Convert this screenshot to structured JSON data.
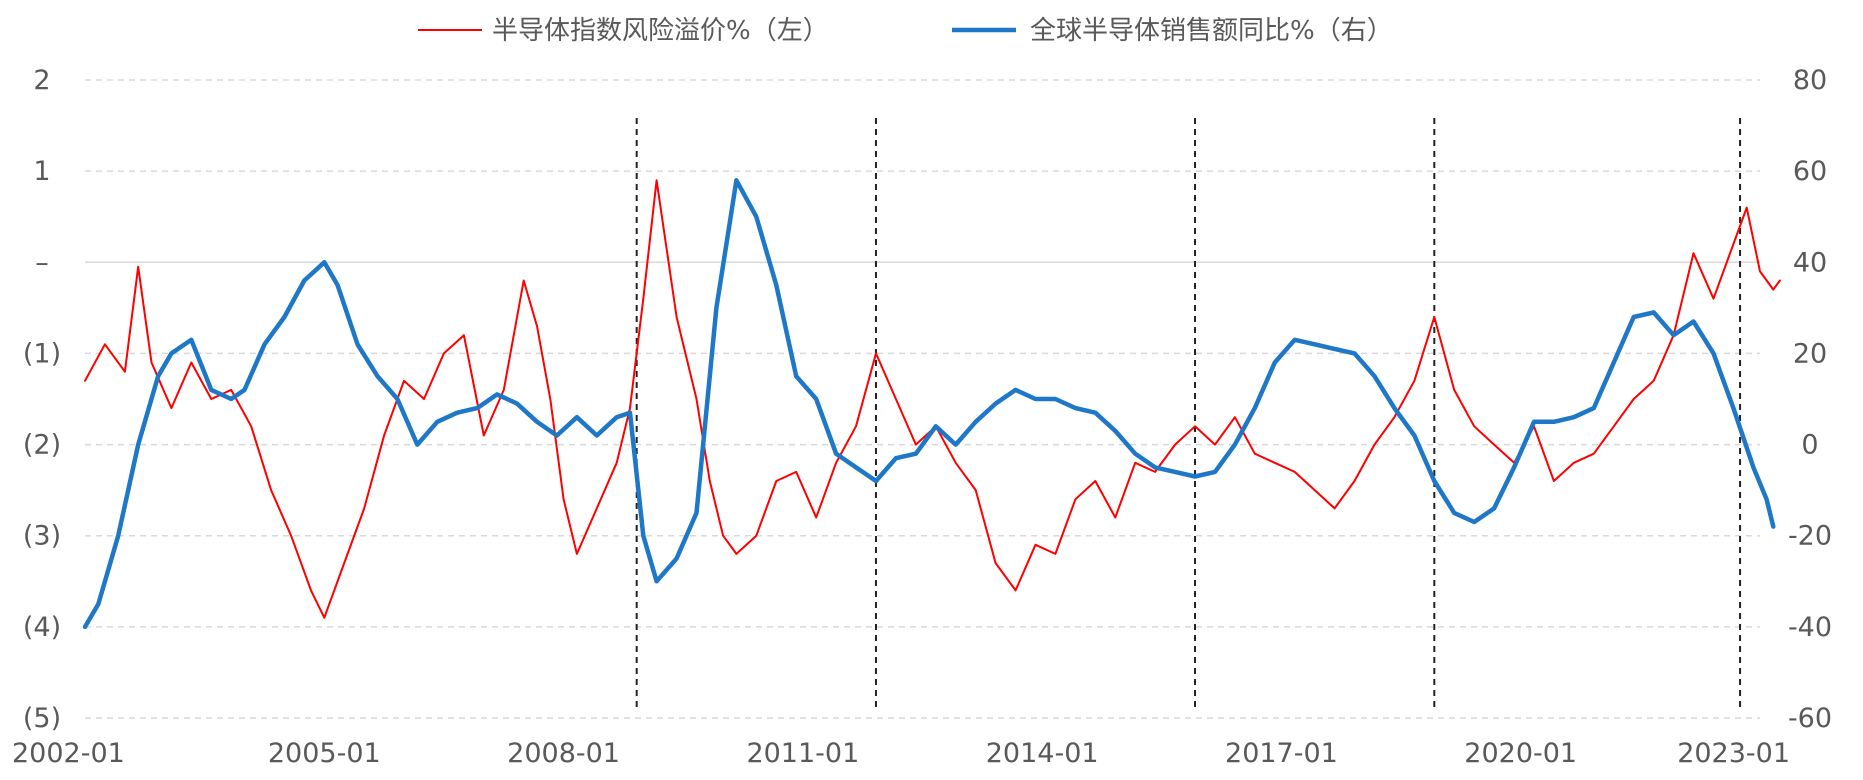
{
  "chart_data": {
    "type": "line",
    "legend_position": "top",
    "grid": "horizontal dashed",
    "x_start": "2002-01",
    "x_end": "2023-01",
    "x_tick_labels": [
      "2002-01",
      "2005-01",
      "2008-01",
      "2011-01",
      "2014-01",
      "2017-01",
      "2020-01",
      "2023-01"
    ],
    "y_left": {
      "range": [
        -5,
        2
      ],
      "ticks": [
        2,
        1,
        0,
        -1,
        -2,
        -3,
        -4,
        -5
      ],
      "tick_labels": [
        "2",
        "1",
        "–",
        "(1)",
        "(2)",
        "(3)",
        "(4)",
        "(5)"
      ]
    },
    "y_right": {
      "range": [
        -60,
        80
      ],
      "ticks": [
        80,
        60,
        40,
        20,
        0,
        -20,
        -40,
        -60
      ],
      "tick_labels": [
        "80",
        "60",
        "40",
        "20",
        "0",
        "-20",
        "-40",
        "-60"
      ]
    },
    "vertical_markers": [
      "2008-12",
      "2011-12",
      "2015-12",
      "2018-12",
      "2022-10"
    ],
    "series": [
      {
        "name": "半导体指数风险溢价%（左）",
        "axis": "left",
        "color": "#ff0000",
        "points": [
          [
            "2002-01",
            -1.3
          ],
          [
            "2002-04",
            -0.9
          ],
          [
            "2002-07",
            -1.2
          ],
          [
            "2002-09",
            -0.05
          ],
          [
            "2002-11",
            -1.1
          ],
          [
            "2003-02",
            -1.6
          ],
          [
            "2003-05",
            -1.1
          ],
          [
            "2003-08",
            -1.5
          ],
          [
            "2003-11",
            -1.4
          ],
          [
            "2004-02",
            -1.8
          ],
          [
            "2004-05",
            -2.5
          ],
          [
            "2004-08",
            -3.0
          ],
          [
            "2004-11",
            -3.6
          ],
          [
            "2005-01",
            -3.9
          ],
          [
            "2005-04",
            -3.3
          ],
          [
            "2005-07",
            -2.7
          ],
          [
            "2005-10",
            -1.9
          ],
          [
            "2006-01",
            -1.3
          ],
          [
            "2006-04",
            -1.5
          ],
          [
            "2006-07",
            -1.0
          ],
          [
            "2006-10",
            -0.8
          ],
          [
            "2007-01",
            -1.9
          ],
          [
            "2007-04",
            -1.4
          ],
          [
            "2007-07",
            -0.2
          ],
          [
            "2007-09",
            -0.7
          ],
          [
            "2007-11",
            -1.5
          ],
          [
            "2008-01",
            -2.6
          ],
          [
            "2008-03",
            -3.2
          ],
          [
            "2008-06",
            -2.7
          ],
          [
            "2008-09",
            -2.2
          ],
          [
            "2008-11",
            -1.6
          ],
          [
            "2009-01",
            -0.4
          ],
          [
            "2009-03",
            0.9
          ],
          [
            "2009-06",
            -0.6
          ],
          [
            "2009-09",
            -1.5
          ],
          [
            "2009-11",
            -2.4
          ],
          [
            "2010-01",
            -3.0
          ],
          [
            "2010-03",
            -3.2
          ],
          [
            "2010-06",
            -3.0
          ],
          [
            "2010-09",
            -2.4
          ],
          [
            "2010-12",
            -2.3
          ],
          [
            "2011-03",
            -2.8
          ],
          [
            "2011-06",
            -2.2
          ],
          [
            "2011-09",
            -1.8
          ],
          [
            "2011-12",
            -1.0
          ],
          [
            "2012-03",
            -1.5
          ],
          [
            "2012-06",
            -2.0
          ],
          [
            "2012-09",
            -1.8
          ],
          [
            "2012-12",
            -2.2
          ],
          [
            "2013-03",
            -2.5
          ],
          [
            "2013-06",
            -3.3
          ],
          [
            "2013-09",
            -3.6
          ],
          [
            "2013-12",
            -3.1
          ],
          [
            "2014-03",
            -3.2
          ],
          [
            "2014-06",
            -2.6
          ],
          [
            "2014-09",
            -2.4
          ],
          [
            "2014-12",
            -2.8
          ],
          [
            "2015-03",
            -2.2
          ],
          [
            "2015-06",
            -2.3
          ],
          [
            "2015-09",
            -2.0
          ],
          [
            "2015-12",
            -1.8
          ],
          [
            "2016-03",
            -2.0
          ],
          [
            "2016-06",
            -1.7
          ],
          [
            "2016-09",
            -2.1
          ],
          [
            "2016-12",
            -2.2
          ],
          [
            "2017-03",
            -2.3
          ],
          [
            "2017-06",
            -2.5
          ],
          [
            "2017-09",
            -2.7
          ],
          [
            "2017-12",
            -2.4
          ],
          [
            "2018-03",
            -2.0
          ],
          [
            "2018-06",
            -1.7
          ],
          [
            "2018-09",
            -1.3
          ],
          [
            "2018-12",
            -0.6
          ],
          [
            "2019-03",
            -1.4
          ],
          [
            "2019-06",
            -1.8
          ],
          [
            "2019-09",
            -2.0
          ],
          [
            "2019-12",
            -2.2
          ],
          [
            "2020-03",
            -1.8
          ],
          [
            "2020-06",
            -2.4
          ],
          [
            "2020-09",
            -2.2
          ],
          [
            "2020-12",
            -2.1
          ],
          [
            "2021-03",
            -1.8
          ],
          [
            "2021-06",
            -1.5
          ],
          [
            "2021-09",
            -1.3
          ],
          [
            "2021-12",
            -0.8
          ],
          [
            "2022-03",
            0.1
          ],
          [
            "2022-06",
            -0.4
          ],
          [
            "2022-09",
            0.2
          ],
          [
            "2022-11",
            0.6
          ],
          [
            "2023-01",
            -0.1
          ],
          [
            "2023-03",
            -0.3
          ],
          [
            "2023-04",
            -0.2
          ]
        ]
      },
      {
        "name": "全球半导体销售额同比%（右）",
        "axis": "right",
        "color": "#1f77c8",
        "points": [
          [
            "2002-01",
            -40
          ],
          [
            "2002-03",
            -35
          ],
          [
            "2002-06",
            -20
          ],
          [
            "2002-09",
            0
          ],
          [
            "2002-12",
            15
          ],
          [
            "2003-02",
            20
          ],
          [
            "2003-05",
            23
          ],
          [
            "2003-08",
            12
          ],
          [
            "2003-11",
            10
          ],
          [
            "2004-01",
            12
          ],
          [
            "2004-04",
            22
          ],
          [
            "2004-07",
            28
          ],
          [
            "2004-10",
            36
          ],
          [
            "2005-01",
            40
          ],
          [
            "2005-03",
            35
          ],
          [
            "2005-06",
            22
          ],
          [
            "2005-09",
            15
          ],
          [
            "2005-12",
            10
          ],
          [
            "2006-03",
            0
          ],
          [
            "2006-06",
            5
          ],
          [
            "2006-09",
            7
          ],
          [
            "2006-12",
            8
          ],
          [
            "2007-03",
            11
          ],
          [
            "2007-06",
            9
          ],
          [
            "2007-09",
            5
          ],
          [
            "2007-12",
            2
          ],
          [
            "2008-03",
            6
          ],
          [
            "2008-06",
            2
          ],
          [
            "2008-09",
            6
          ],
          [
            "2008-11",
            7
          ],
          [
            "2009-01",
            -20
          ],
          [
            "2009-03",
            -30
          ],
          [
            "2009-06",
            -25
          ],
          [
            "2009-09",
            -15
          ],
          [
            "2009-12",
            30
          ],
          [
            "2010-03",
            58
          ],
          [
            "2010-06",
            50
          ],
          [
            "2010-09",
            35
          ],
          [
            "2010-12",
            15
          ],
          [
            "2011-03",
            10
          ],
          [
            "2011-06",
            -2
          ],
          [
            "2011-09",
            -5
          ],
          [
            "2011-12",
            -8
          ],
          [
            "2012-03",
            -3
          ],
          [
            "2012-06",
            -2
          ],
          [
            "2012-09",
            4
          ],
          [
            "2012-12",
            0
          ],
          [
            "2013-03",
            5
          ],
          [
            "2013-06",
            9
          ],
          [
            "2013-09",
            12
          ],
          [
            "2013-12",
            10
          ],
          [
            "2014-03",
            10
          ],
          [
            "2014-06",
            8
          ],
          [
            "2014-09",
            7
          ],
          [
            "2014-12",
            3
          ],
          [
            "2015-03",
            -2
          ],
          [
            "2015-06",
            -5
          ],
          [
            "2015-09",
            -6
          ],
          [
            "2015-12",
            -7
          ],
          [
            "2016-03",
            -6
          ],
          [
            "2016-06",
            0
          ],
          [
            "2016-09",
            8
          ],
          [
            "2016-12",
            18
          ],
          [
            "2017-03",
            23
          ],
          [
            "2017-06",
            22
          ],
          [
            "2017-09",
            21
          ],
          [
            "2017-12",
            20
          ],
          [
            "2018-03",
            15
          ],
          [
            "2018-06",
            8
          ],
          [
            "2018-09",
            2
          ],
          [
            "2018-12",
            -8
          ],
          [
            "2019-03",
            -15
          ],
          [
            "2019-06",
            -17
          ],
          [
            "2019-09",
            -14
          ],
          [
            "2019-12",
            -5
          ],
          [
            "2020-03",
            5
          ],
          [
            "2020-06",
            5
          ],
          [
            "2020-09",
            6
          ],
          [
            "2020-12",
            8
          ],
          [
            "2021-03",
            18
          ],
          [
            "2021-06",
            28
          ],
          [
            "2021-09",
            29
          ],
          [
            "2021-12",
            24
          ],
          [
            "2022-03",
            27
          ],
          [
            "2022-06",
            20
          ],
          [
            "2022-09",
            8
          ],
          [
            "2022-12",
            -5
          ],
          [
            "2023-02",
            -12
          ],
          [
            "2023-03",
            -18
          ]
        ]
      }
    ]
  }
}
